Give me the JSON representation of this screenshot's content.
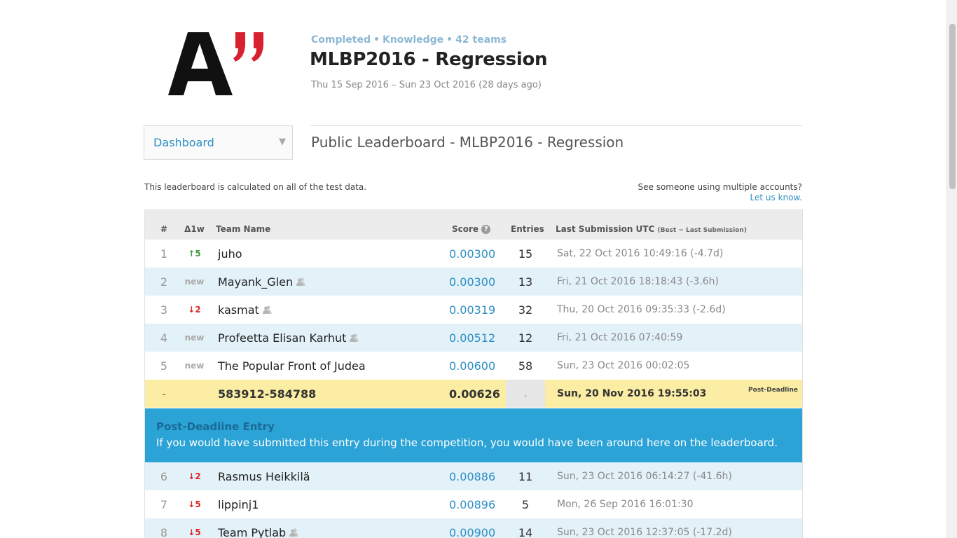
{
  "header": {
    "status": "Completed",
    "category": "Knowledge",
    "teams": "42 teams",
    "title": "MLBP2016 - Regression",
    "dates": "Thu 15 Sep 2016 – Sun 23 Oct 2016 (28 days ago)"
  },
  "nav": {
    "dashboard_label": "Dashboard"
  },
  "leaderboard_title": "Public Leaderboard - MLBP2016 - Regression",
  "calc_note": "This leaderboard is calculated on all of the test data.",
  "multi_accounts": {
    "question": "See someone using multiple accounts?",
    "link": "Let us know."
  },
  "columns": {
    "rank": "#",
    "delta": "Δ1w",
    "team": "Team Name",
    "score": "Score",
    "entries": "Entries",
    "last": "Last Submission UTC",
    "last_note": "(Best − Last Submission)"
  },
  "rows_top": [
    {
      "rank": "1",
      "delta": "↑5",
      "delta_kind": "up",
      "team": "juho",
      "member": false,
      "score": "0.00300",
      "entries": "15",
      "last": "Sat, 22 Oct 2016 10:49:16 (-4.7d)"
    },
    {
      "rank": "2",
      "delta": "new",
      "delta_kind": "new",
      "team": "Mayank_Glen",
      "member": true,
      "score": "0.00300",
      "entries": "13",
      "last": "Fri, 21 Oct 2016 18:18:43 (-3.6h)"
    },
    {
      "rank": "3",
      "delta": "↓2",
      "delta_kind": "down",
      "team": "kasmat",
      "member": true,
      "score": "0.00319",
      "entries": "32",
      "last": "Thu, 20 Oct 2016 09:35:33 (-2.6d)"
    },
    {
      "rank": "4",
      "delta": "new",
      "delta_kind": "new",
      "team": "Profeetta Elisan Karhut",
      "member": true,
      "score": "0.00512",
      "entries": "12",
      "last": "Fri, 21 Oct 2016 07:40:59"
    },
    {
      "rank": "5",
      "delta": "new",
      "delta_kind": "new",
      "team": "The Popular Front of Judea",
      "member": false,
      "score": "0.00600",
      "entries": "58",
      "last": "Sun, 23 Oct 2016 00:02:05"
    }
  ],
  "post_row": {
    "rank": "-",
    "team": "583912-584788",
    "score": "0.00626",
    "entries": "-",
    "last": "Sun, 20 Nov 2016 19:55:03",
    "tag": "Post-Deadline"
  },
  "banner": {
    "title": "Post-Deadline Entry",
    "text": "If you would have submitted this entry during the competition, you would have been around here on the leaderboard."
  },
  "rows_bottom": [
    {
      "rank": "6",
      "delta": "↓2",
      "delta_kind": "down",
      "team": "Rasmus Heikkilä",
      "member": false,
      "score": "0.00886",
      "entries": "11",
      "last": "Sun, 23 Oct 2016 06:14:27 (-41.6h)"
    },
    {
      "rank": "7",
      "delta": "↓5",
      "delta_kind": "down",
      "team": "lippinj1",
      "member": false,
      "score": "0.00896",
      "entries": "5",
      "last": "Mon, 26 Sep 2016 16:01:30"
    },
    {
      "rank": "8",
      "delta": "↓5",
      "delta_kind": "down",
      "team": "Team Pytlab",
      "member": true,
      "score": "0.00900",
      "entries": "14",
      "last": "Sun, 23 Oct 2016 12:37:05 (-17.2d)"
    }
  ],
  "colors": {
    "accent": "#2d8fc4",
    "logo_red": "#d9202f",
    "banner_bg": "#2ca3d6",
    "post_row_bg": "#fbeea4",
    "row_alt_bg": "#e3f1f9"
  }
}
